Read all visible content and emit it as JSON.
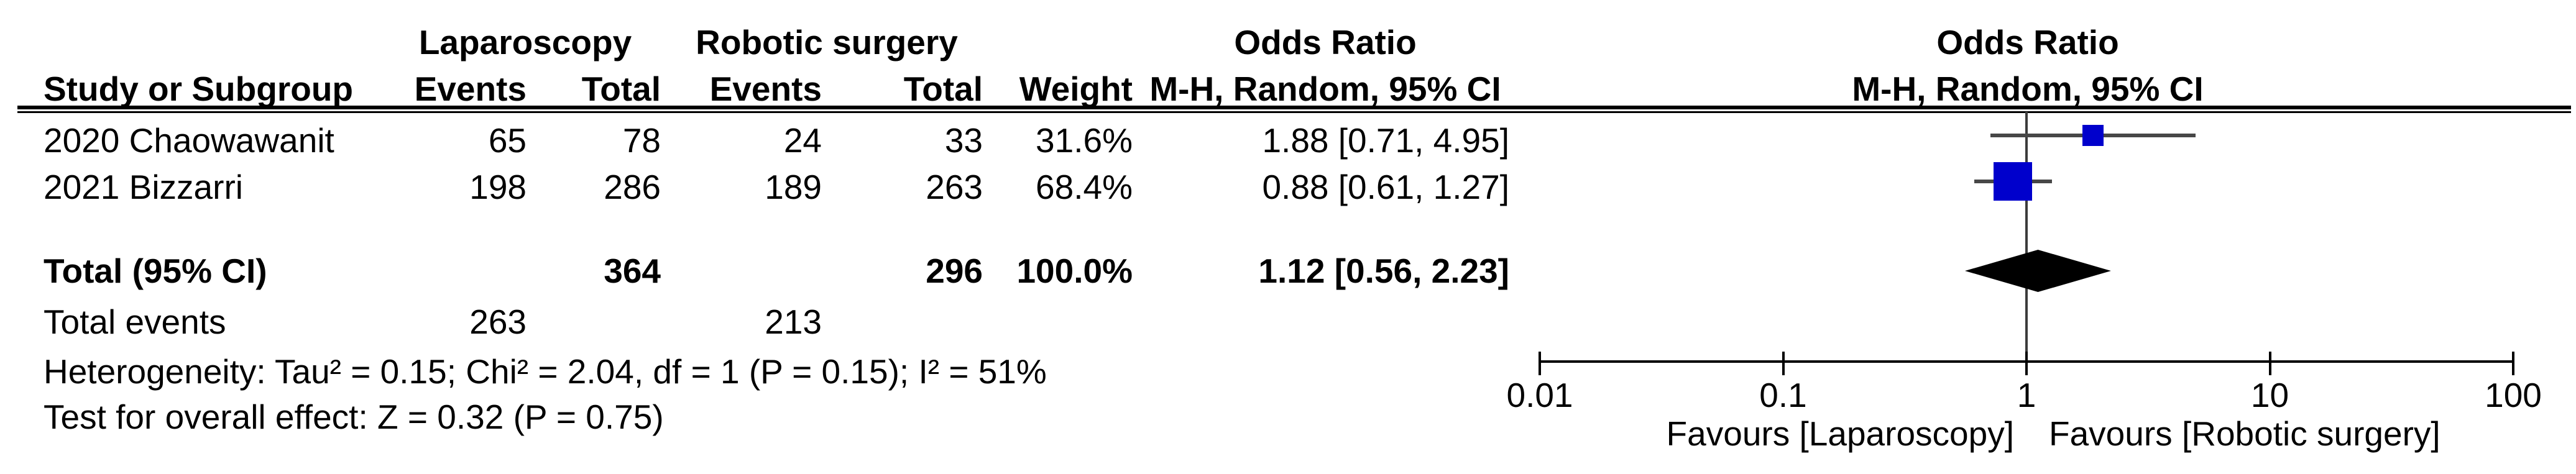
{
  "header": {
    "group1": "Laparoscopy",
    "group2": "Robotic surgery",
    "odds_ratio": "Odds Ratio",
    "mh_ci": "M-H, Random, 95% CI",
    "study": "Study or Subgroup",
    "events": "Events",
    "total": "Total",
    "weight": "Weight"
  },
  "rows": [
    {
      "study": "2020 Chaowawanit",
      "events1": "65",
      "total1": "78",
      "events2": "24",
      "total2": "33",
      "weight": "31.6%",
      "or_ci": "1.88 [0.71, 4.95]"
    },
    {
      "study": "2021 Bizzarri",
      "events1": "198",
      "total1": "286",
      "events2": "189",
      "total2": "263",
      "weight": "68.4%",
      "or_ci": "0.88 [0.61, 1.27]"
    }
  ],
  "total_row": {
    "label": "Total (95% CI)",
    "total1": "364",
    "total2": "296",
    "weight": "100.0%",
    "or_ci": "1.12 [0.56, 2.23]"
  },
  "total_events": {
    "label": "Total events",
    "events1": "263",
    "events2": "213"
  },
  "footnotes": {
    "heterogeneity": "Heterogeneity: Tau² = 0.15; Chi² = 2.04, df = 1 (P = 0.15); I² = 51%",
    "overall_effect": "Test for overall effect: Z = 0.32 (P = 0.75)"
  },
  "axis": {
    "ticks": [
      "0.01",
      "0.1",
      "1",
      "10",
      "100"
    ],
    "favours_left": "Favours [Laparoscopy]",
    "favours_right": "Favours [Robotic surgery]"
  },
  "chart_data": {
    "type": "forest",
    "scale": "log10",
    "xlim": [
      0.01,
      100
    ],
    "x_ticks": [
      0.01,
      0.1,
      1,
      10,
      100
    ],
    "effect_measure": "Odds Ratio, M-H, Random, 95% CI",
    "studies": [
      {
        "name": "2020 Chaowawanit",
        "or": 1.88,
        "ci_low": 0.71,
        "ci_high": 4.95,
        "weight_pct": 31.6,
        "events_lap": 65,
        "total_lap": 78,
        "events_rob": 24,
        "total_rob": 33
      },
      {
        "name": "2021 Bizzarri",
        "or": 0.88,
        "ci_low": 0.61,
        "ci_high": 1.27,
        "weight_pct": 68.4,
        "events_lap": 198,
        "total_lap": 286,
        "events_rob": 189,
        "total_rob": 263
      }
    ],
    "total": {
      "or": 1.12,
      "ci_low": 0.56,
      "ci_high": 2.23,
      "total_lap": 364,
      "total_rob": 296,
      "events_lap": 263,
      "events_rob": 213,
      "weight_pct": 100.0
    },
    "heterogeneity": {
      "tau2": 0.15,
      "chi2": 2.04,
      "df": 1,
      "p": 0.15,
      "i2_pct": 51
    },
    "overall_effect": {
      "z": 0.32,
      "p": 0.75
    },
    "marker_color": "#0000CC",
    "diamond_color": "#000000"
  }
}
